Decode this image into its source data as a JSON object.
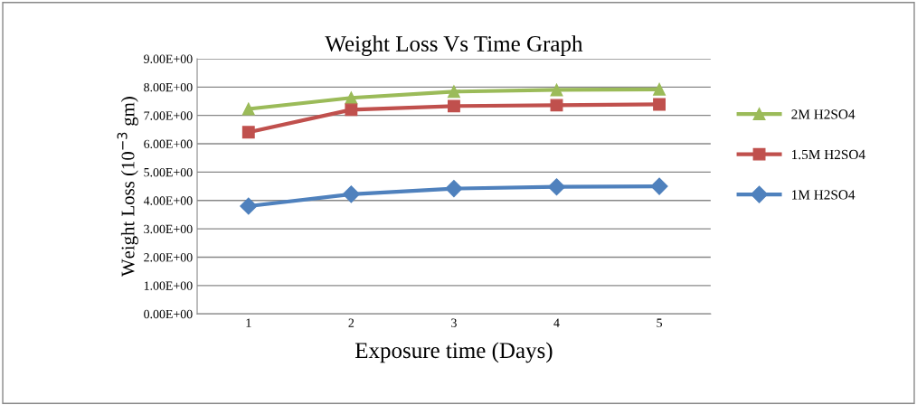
{
  "chart_data": {
    "type": "line",
    "title": "Weight Loss Vs Time Graph",
    "xlabel": "Exposure time (Days)",
    "ylabel": "Weight Loss (10$^{−3}$ gm)",
    "categories": [
      "1",
      "2",
      "3",
      "4",
      "5"
    ],
    "series": [
      {
        "name": "2M H2SO4",
        "color": "#9bbb59",
        "marker": "triangle",
        "values": [
          7.23,
          7.62,
          7.84,
          7.9,
          7.92
        ]
      },
      {
        "name": "1.5M H2SO4",
        "color": "#c0504d",
        "marker": "square",
        "values": [
          6.41,
          7.2,
          7.33,
          7.36,
          7.39
        ]
      },
      {
        "name": "1M H2SO4",
        "color": "#4f81bd",
        "marker": "diamond",
        "values": [
          3.8,
          4.22,
          4.42,
          4.48,
          4.5
        ]
      }
    ],
    "ylim": [
      0,
      9
    ],
    "yticks": [
      {
        "value": 0,
        "label": "0.00E+00"
      },
      {
        "value": 1,
        "label": "1.00E+00"
      },
      {
        "value": 2,
        "label": "2.00E+00"
      },
      {
        "value": 3,
        "label": "3.00E+00"
      },
      {
        "value": 4,
        "label": "4.00E+00"
      },
      {
        "value": 5,
        "label": "5.00E+00"
      },
      {
        "value": 6,
        "label": "6.00E+00"
      },
      {
        "value": 7,
        "label": "7.00E+00"
      },
      {
        "value": 8,
        "label": "8.00E+00"
      },
      {
        "value": 9,
        "label": "9.00E+00"
      }
    ],
    "grid": "y",
    "legend": "right",
    "line_style": "solid"
  }
}
